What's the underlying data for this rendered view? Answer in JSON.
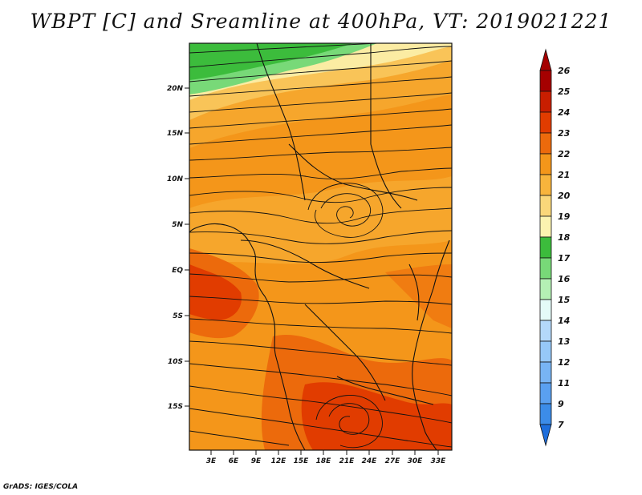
{
  "title": "WBPT [C] and Sreamline at 400hPa, VT: 2019021221",
  "credit": "GrADS: IGES/COLA",
  "map": {
    "lat_labels": [
      "20N",
      "15N",
      "10N",
      "5N",
      "EQ",
      "5S",
      "10S",
      "15S"
    ],
    "lon_labels": [
      "3E",
      "6E",
      "9E",
      "12E",
      "15E",
      "18E",
      "21E",
      "24E",
      "27E",
      "30E",
      "33E"
    ]
  },
  "colorbar": {
    "labels": [
      "26",
      "25",
      "24",
      "23",
      "22",
      "21",
      "20",
      "19",
      "18",
      "17",
      "16",
      "15",
      "14",
      "13",
      "12",
      "11",
      "9",
      "7"
    ],
    "colors": {
      "band_25_26": "#a50000",
      "band_24_25": "#c81e00",
      "band_23_24": "#e13c00",
      "band_22_23": "#ec6a0c",
      "band_21_22": "#f4961a",
      "band_20_21": "#f8b43c",
      "band_19_20": "#fad77a",
      "band_18_19": "#fbf3b0",
      "band_17_18": "#3cbc3c",
      "band_16_17": "#78d978",
      "band_15_16": "#b4f0b4",
      "band_14_15": "#e4fbf8",
      "band_13_14": "#b4d8fa",
      "band_12_13": "#96c8f8",
      "band_11_12": "#78b4f4",
      "band_9_11": "#5aa0f0",
      "band_7_9": "#3c8ce8",
      "band_below_7": "#1e6edc"
    }
  }
}
